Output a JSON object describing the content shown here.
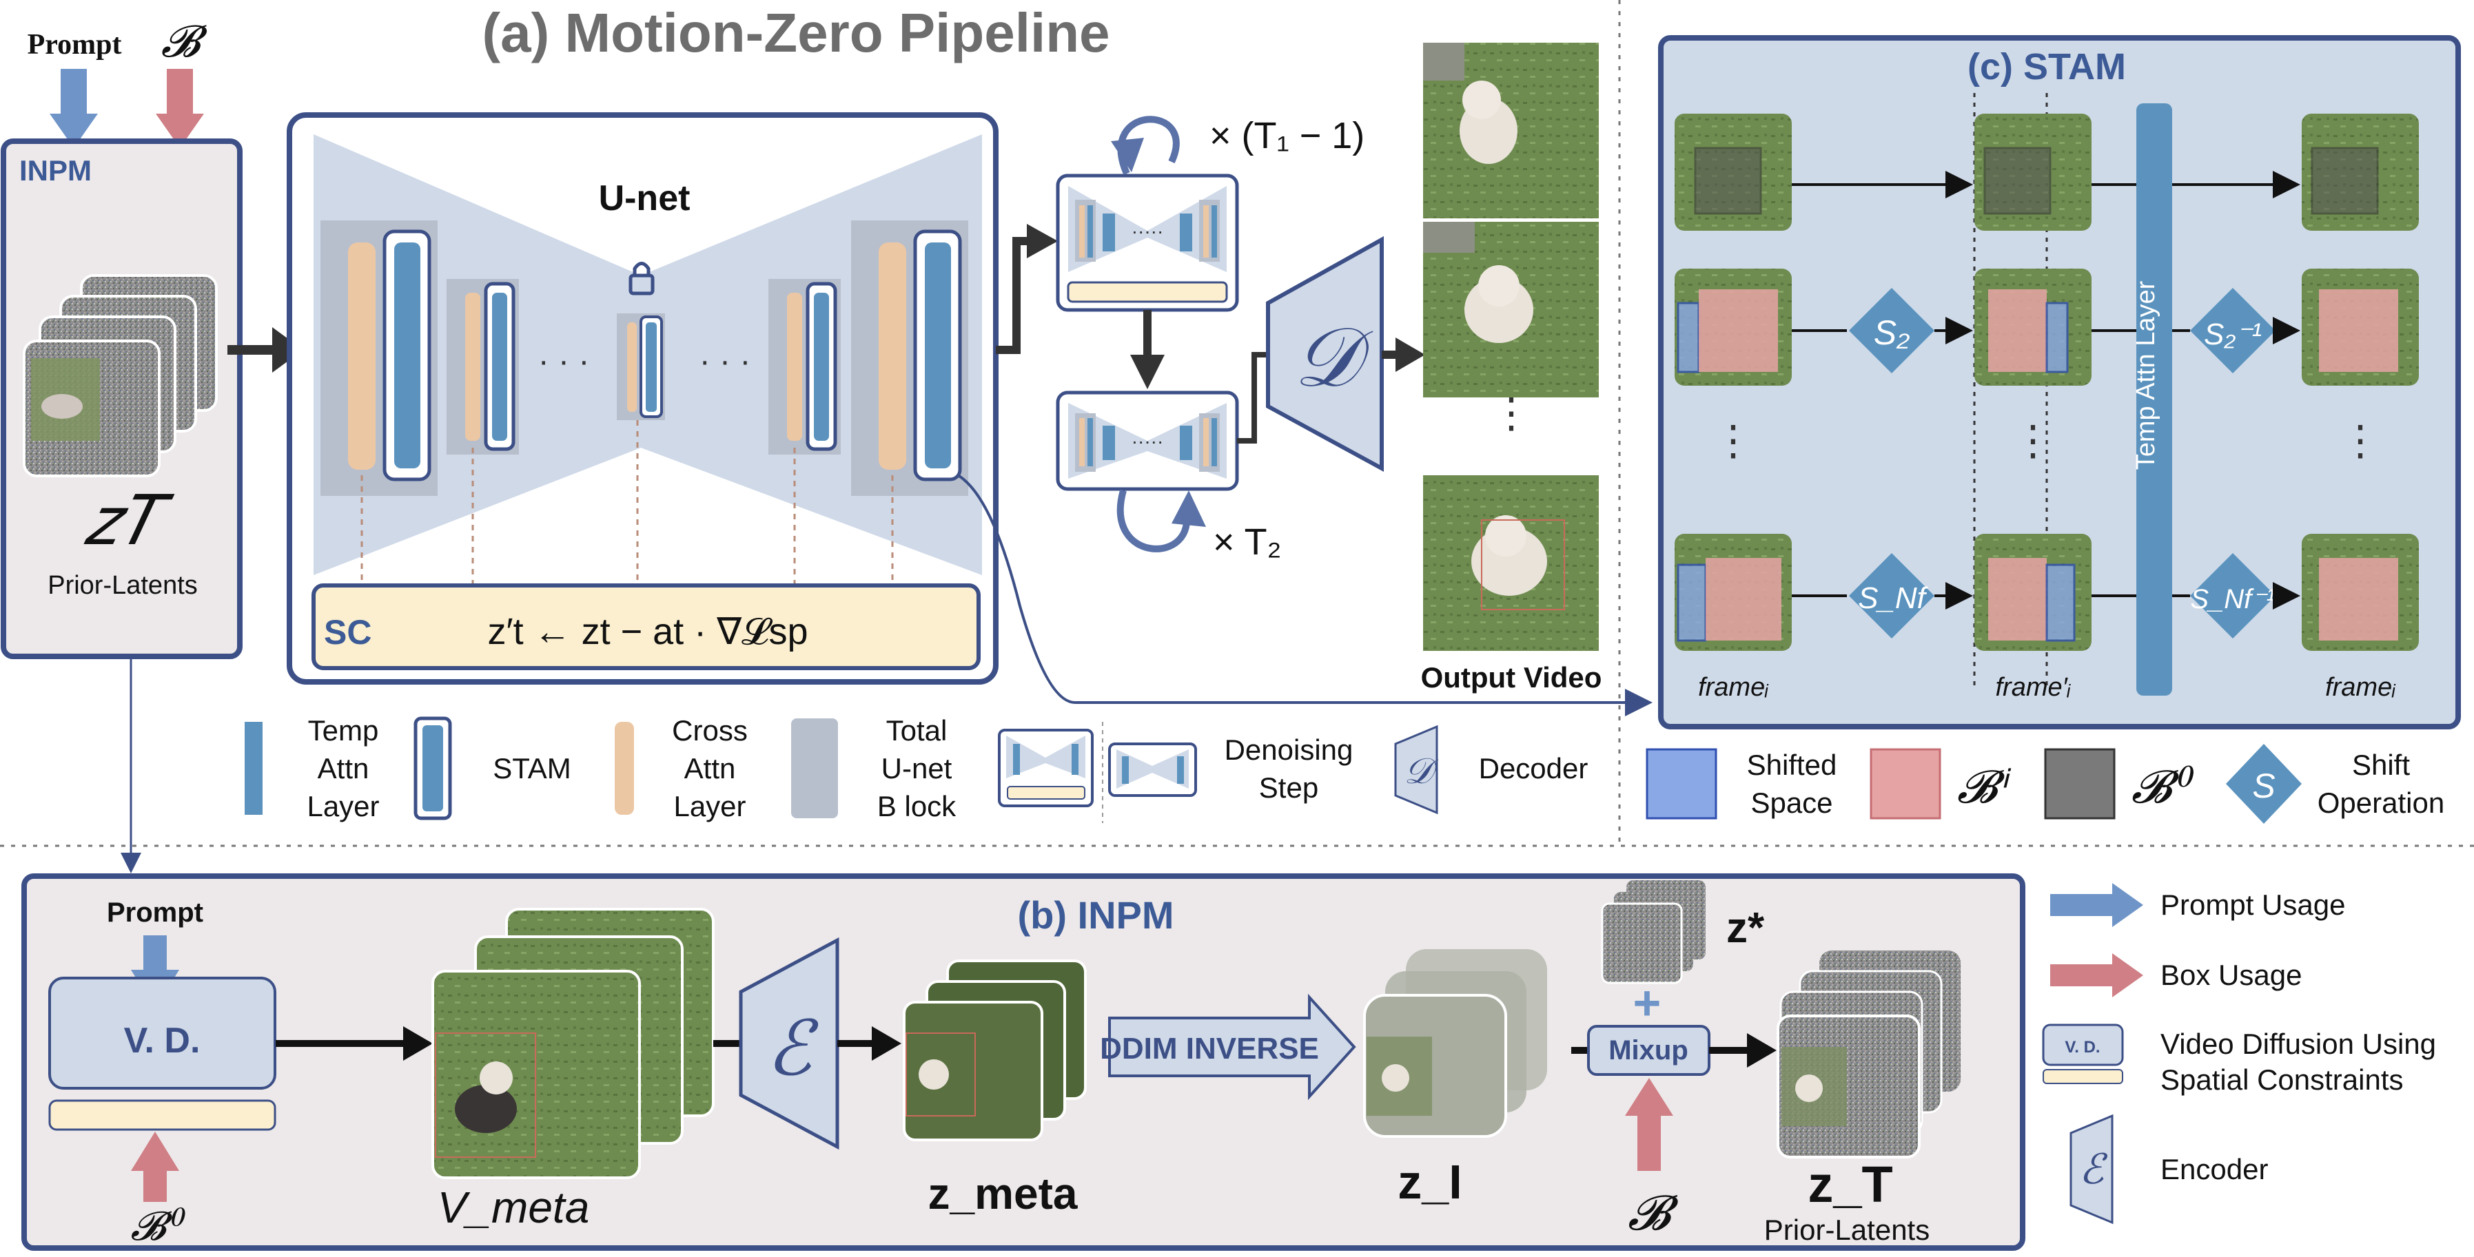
{
  "panel_a": {
    "title": "(a) Motion-Zero Pipeline",
    "prompt": "Prompt",
    "box_symbol": "𝓑",
    "inpm_label": "INPM",
    "zt_symbol": "𝑧𝑇",
    "zt_caption": "Prior-Latents",
    "unet_label": "U-net",
    "dots": "· · ·",
    "sc_label": "SC",
    "sc_formula": "z′t ← zt − at · ∇𝓛sp",
    "loop1": "× (T₁ − 1)",
    "loop2": "× T₂",
    "decoder_symbol": "𝒟",
    "vdots": "⋮",
    "output_label": "Output Video"
  },
  "legend_a": {
    "temp_attn": [
      "Temp",
      "Attn",
      "Layer"
    ],
    "stam": "STAM",
    "cross_attn": [
      "Cross",
      "Attn",
      "Layer"
    ],
    "total_unet": [
      "Total",
      "U-net",
      "B lock"
    ],
    "denoising": [
      "Denoising",
      "Step"
    ],
    "decoder_symbol": "𝒟",
    "decoder": "Decoder"
  },
  "panel_c": {
    "title": "(c) STAM",
    "temp_layer": "Temp  Attn  Layer",
    "shift_2": "S₂",
    "shift_nf": "S_Nf",
    "shift_2_inv": "S₂⁻¹",
    "shift_nf_inv": "S_Nf⁻¹",
    "frame_in": "frameᵢ",
    "frame_mid": "frame′ᵢ",
    "frame_out": "frameᵢ",
    "legend": {
      "shifted_space": [
        "Shifted",
        "Space"
      ],
      "bi": "𝓑ⁱ",
      "b0": "𝓑⁰",
      "s_symbol": "S",
      "shift_op": [
        "Shift",
        "Operation"
      ]
    }
  },
  "panel_b": {
    "title": "(b) INPM",
    "prompt": "Prompt",
    "vd": "V.  D.",
    "b0": "𝓑⁰",
    "v_meta": "V_meta",
    "encoder_symbol": "ℰ",
    "z_meta": "z_meta",
    "ddim": "DDIM INVERSE",
    "z_i": "z_I",
    "z_star": "z*",
    "plus": "+",
    "mixup": "Mixup",
    "box_symbol": "𝓑",
    "z_t": "z_T",
    "prior": "Prior-Latents"
  },
  "legend_b": {
    "prompt_usage": "Prompt Usage",
    "box_usage": "Box Usage",
    "vd_icon": "V.  D.",
    "vdsc": [
      "Video Diffusion Using",
      "Spatial Constraints"
    ],
    "encoder_symbol": "ℰ",
    "encoder": "Encoder"
  },
  "colors": {
    "navy": "#3c4f86",
    "blue": "#6f95c8",
    "red": "#cf7f85",
    "temp_attn": "#5b93be",
    "cross_attn": "#ecc7a4",
    "unet_block": "#b8bfcc",
    "sc_fill": "#fbefcf",
    "panel_fill": "#eeecec",
    "stam_fill": "#cfdae9",
    "grass": "#6e8a4e"
  }
}
